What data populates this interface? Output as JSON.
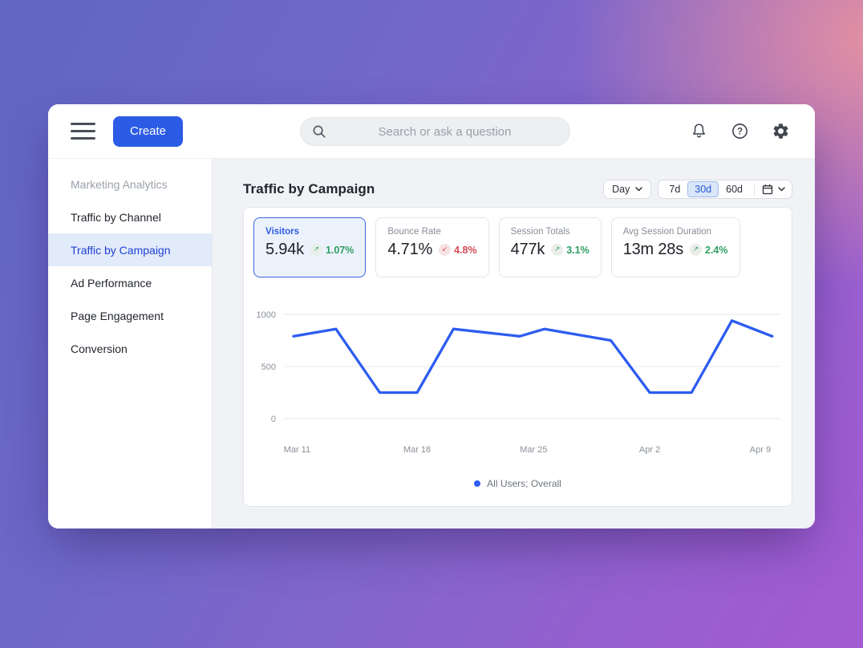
{
  "theme": {
    "accent": "#2c5ce5",
    "line_color": "#2d5cf0",
    "positive_color": "#2f9e62",
    "negative_color": "#d44a55",
    "selected_bg": "#e2ebf9"
  },
  "topbar": {
    "create_label": "Create",
    "search_placeholder": "Search or ask a question",
    "icons": [
      "menu-icon",
      "search-icon",
      "notifications-bell-icon",
      "help-icon",
      "settings-gear-icon"
    ]
  },
  "sidebar": {
    "section_label": "Marketing Analytics",
    "items": [
      {
        "label": "Traffic by Channel",
        "active": false
      },
      {
        "label": "Traffic by Campaign",
        "active": true
      },
      {
        "label": "Ad Performance",
        "active": false
      },
      {
        "label": "Page Engagement",
        "active": false
      },
      {
        "label": "Conversion",
        "active": false
      }
    ]
  },
  "main": {
    "title": "Traffic by Campaign",
    "interval_label": "Day",
    "ranges": [
      "7d",
      "30d",
      "60d"
    ],
    "active_range": "30d"
  },
  "metrics": [
    {
      "label": "Visitors",
      "value": "5.94k",
      "delta": "1.07%",
      "arrow": "↗",
      "trend": "positive",
      "selected": true
    },
    {
      "label": "Bounce Rate",
      "value": "4.71%",
      "delta": "4.8%",
      "arrow": "↙",
      "trend": "negative",
      "selected": false
    },
    {
      "label": "Session Totals",
      "value": "477k",
      "delta": "3.1%",
      "arrow": "↗",
      "trend": "positive",
      "selected": false
    },
    {
      "label": "Avg Session Duration",
      "value": "13m 28s",
      "delta": "2.4%",
      "arrow": "↗",
      "trend": "positive",
      "selected": false
    }
  ],
  "chart_data": {
    "type": "line",
    "title": "Traffic by Campaign",
    "legend": "All Users; Overall",
    "legend_position": "bottom-center",
    "grid": "horizontal",
    "y_ticks": [
      0,
      500,
      1000
    ],
    "ylim": [
      0,
      1000
    ],
    "x_ticks": [
      {
        "label": "Mar 11",
        "f": 0.028
      },
      {
        "label": "Mar 18",
        "f": 0.269
      },
      {
        "label": "Mar 25",
        "f": 0.503
      },
      {
        "label": "Apr 2",
        "f": 0.736
      },
      {
        "label": "Apr 9",
        "f": 0.958
      }
    ],
    "series": [
      {
        "name": "All Users; Overall",
        "points": [
          {
            "x": 0.021,
            "y": 790
          },
          {
            "x": 0.106,
            "y": 860
          },
          {
            "x": 0.194,
            "y": 250
          },
          {
            "x": 0.269,
            "y": 250
          },
          {
            "x": 0.342,
            "y": 860
          },
          {
            "x": 0.475,
            "y": 790
          },
          {
            "x": 0.525,
            "y": 860
          },
          {
            "x": 0.658,
            "y": 750
          },
          {
            "x": 0.736,
            "y": 250
          },
          {
            "x": 0.82,
            "y": 250
          },
          {
            "x": 0.901,
            "y": 940
          },
          {
            "x": 0.982,
            "y": 790
          }
        ]
      }
    ]
  }
}
